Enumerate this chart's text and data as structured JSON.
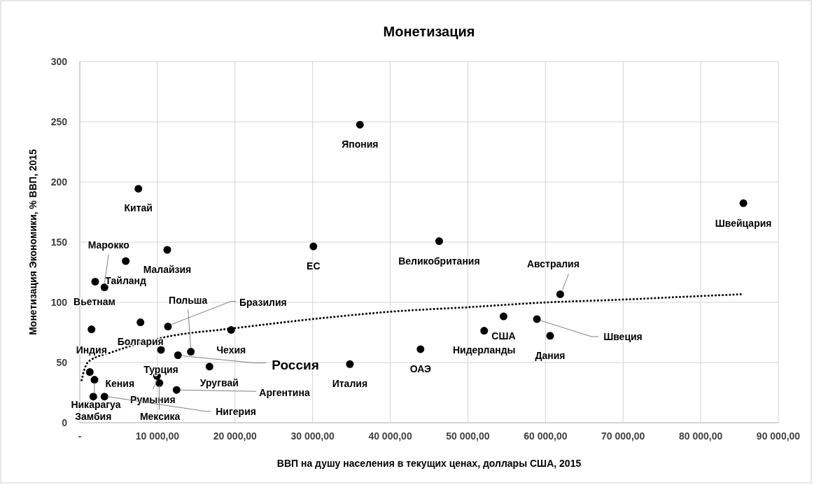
{
  "chart_data": {
    "type": "scatter",
    "title": "Монетизация",
    "xlabel": "ВВП на душу населения в текущих ценах, доллары США, 2015",
    "ylabel": "Монетизация Экономики, % ВВП, 2015",
    "xlim": [
      0,
      90000
    ],
    "ylim": [
      0,
      300
    ],
    "xticks": [
      {
        "value": 0,
        "label": "-"
      },
      {
        "value": 10000,
        "label": "10 000,00"
      },
      {
        "value": 20000,
        "label": "20 000,00"
      },
      {
        "value": 30000,
        "label": "30 000,00"
      },
      {
        "value": 40000,
        "label": "40 000,00"
      },
      {
        "value": 50000,
        "label": "50 000,00"
      },
      {
        "value": 60000,
        "label": "60 000,00"
      },
      {
        "value": 70000,
        "label": "70 000,00"
      },
      {
        "value": 80000,
        "label": "80 000,00"
      },
      {
        "value": 90000,
        "label": "90 000,00"
      }
    ],
    "yticks": [
      0,
      50,
      100,
      150,
      200,
      250,
      300
    ],
    "grid": true,
    "series": [
      {
        "color": "#000000",
        "marker": "circle",
        "x": [
          7550,
          36100,
          30100,
          46300,
          85500,
          61900,
          54600,
          52100,
          58900,
          60600,
          43900,
          34800,
          11270,
          5920,
          3180,
          1980,
          1510,
          7820,
          11360,
          14310,
          19500,
          12650,
          10460,
          16710,
          9950,
          10250,
          12470,
          3180,
          1290,
          1890,
          1740
        ],
        "values": [
          194.4,
          247.6,
          146.5,
          150.8,
          182.4,
          106.7,
          88.3,
          76.4,
          86.1,
          72.2,
          61.1,
          48.7,
          143.6,
          134.3,
          112.5,
          117.2,
          77.6,
          83.4,
          79.9,
          59.0,
          77.1,
          56.1,
          60.5,
          46.6,
          38.8,
          33.0,
          27.2,
          21.7,
          42.1,
          35.7,
          21.7
        ]
      },
      {
        "type": "line",
        "color": "#000000",
        "marker": "none",
        "line_style": "dotted",
        "x": [
          240,
          540,
          1140,
          4150,
          11060,
          19780,
          33000,
          40000,
          49900,
          60000,
          70000,
          79900,
          85300
        ],
        "values": [
          35.3,
          43.1,
          50.9,
          58.6,
          71.2,
          78.4,
          88.1,
          92.2,
          95.9,
          99.9,
          102.3,
          105.2,
          106.7
        ]
      }
    ],
    "annotations": [
      {
        "text": "Китай",
        "x": 7550,
        "y": 194.4
      },
      {
        "text": "Япония",
        "x": 36100,
        "y": 247.6
      },
      {
        "text": "ЕС",
        "x": 30100,
        "y": 146.5
      },
      {
        "text": "Великобритания",
        "x": 46300,
        "y": 150.8
      },
      {
        "text": "Швейцария",
        "x": 85500,
        "y": 182.4
      },
      {
        "text": "Австралия",
        "x": 61900,
        "y": 106.7
      },
      {
        "text": "США",
        "x": 54600,
        "y": 88.3
      },
      {
        "text": "Нидерланды",
        "x": 52100,
        "y": 76.4
      },
      {
        "text": "Швеция",
        "x": 58900,
        "y": 86.1
      },
      {
        "text": "Дания",
        "x": 60600,
        "y": 72.2
      },
      {
        "text": "ОАЭ",
        "x": 43900,
        "y": 61.1
      },
      {
        "text": "Италия",
        "x": 34800,
        "y": 48.7
      },
      {
        "text": "Малайзия",
        "x": 11270,
        "y": 143.6
      },
      {
        "text": "Тайланд",
        "x": 5920,
        "y": 134.3
      },
      {
        "text": "Марокко",
        "x": 3180,
        "y": 112.5
      },
      {
        "text": "Вьетнам",
        "x": 1980,
        "y": 117.2
      },
      {
        "text": "Индия",
        "x": 1510,
        "y": 77.6
      },
      {
        "text": "Болгария",
        "x": 7820,
        "y": 83.4
      },
      {
        "text": "Бразилия",
        "x": 11360,
        "y": 79.9
      },
      {
        "text": "Польша",
        "x": 14310,
        "y": 59.0
      },
      {
        "text": "Чехия",
        "x": 19500,
        "y": 77.1
      },
      {
        "text": "Россия",
        "x": 12650,
        "y": 56.1
      },
      {
        "text": "Турция",
        "x": 10460,
        "y": 60.5
      },
      {
        "text": "Уругвай",
        "x": 16710,
        "y": 46.6
      },
      {
        "text": "Румыния",
        "x": 9950,
        "y": 38.8
      },
      {
        "text": "Мексика",
        "x": 10250,
        "y": 33.0
      },
      {
        "text": "Аргентина",
        "x": 12470,
        "y": 27.2
      },
      {
        "text": "Нигерия",
        "x": 3180,
        "y": 21.7
      },
      {
        "text": "Кения",
        "x": 1290,
        "y": 42.1
      },
      {
        "text": "Никарагуа",
        "x": 1890,
        "y": 35.7
      },
      {
        "text": "Замбия",
        "x": 1740,
        "y": 21.7
      }
    ]
  }
}
